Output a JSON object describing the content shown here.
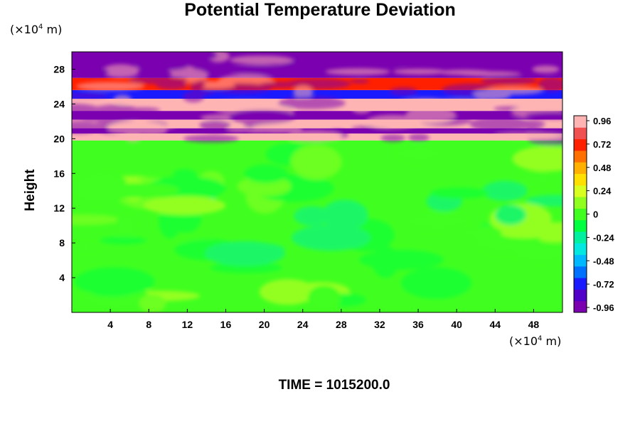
{
  "chart_data": {
    "type": "heatmap",
    "title": "Potential Temperature Deviation",
    "ylabel": "Height",
    "xunit_base": "(×10",
    "xunit_exp": "4",
    "xunit_tail": " m)",
    "yunit_base": "(×10",
    "yunit_exp": "4",
    "yunit_tail": " m)",
    "xlim": [
      0,
      51
    ],
    "ylim": [
      0,
      30
    ],
    "xticks": [
      "4",
      "8",
      "12",
      "16",
      "20",
      "24",
      "28",
      "32",
      "36",
      "40",
      "44",
      "48"
    ],
    "yticks": [
      "4",
      "8",
      "12",
      "16",
      "20",
      "24",
      "28"
    ],
    "colorbar": {
      "ticks": [
        "0.96",
        "0.72",
        "0.48",
        "0.24",
        "0",
        "-0.24",
        "-0.48",
        "-0.72",
        "-0.96"
      ],
      "range": [
        -0.96,
        0.96
      ],
      "colors": [
        "#7a00b0",
        "#5000c8",
        "#1a1aff",
        "#0070ff",
        "#00b8ff",
        "#00e8e0",
        "#00f0a0",
        "#00ff40",
        "#40ff20",
        "#90ff20",
        "#d8ff20",
        "#ffe000",
        "#ffb000",
        "#ff7000",
        "#ff2000",
        "#f05050",
        "#ffb4b4"
      ]
    },
    "bands": [
      {
        "y0": 0,
        "y1": 19.8,
        "value": 0.0
      },
      {
        "y0": 19.8,
        "y1": 20.6,
        "value": 0.96
      },
      {
        "y0": 20.6,
        "y1": 21.2,
        "value": -0.96
      },
      {
        "y0": 21.2,
        "y1": 22.2,
        "value": 0.96
      },
      {
        "y0": 22.2,
        "y1": 23.2,
        "value": -0.96
      },
      {
        "y0": 23.2,
        "y1": 24.6,
        "value": 0.96
      },
      {
        "y0": 24.6,
        "y1": 25.6,
        "value": -0.72
      },
      {
        "y0": 25.6,
        "y1": 27.0,
        "value": 0.72
      },
      {
        "y0": 27.0,
        "y1": 30.0,
        "value": -0.96
      }
    ]
  },
  "footer": {
    "label": "TIME",
    "value": "1015200.0"
  }
}
